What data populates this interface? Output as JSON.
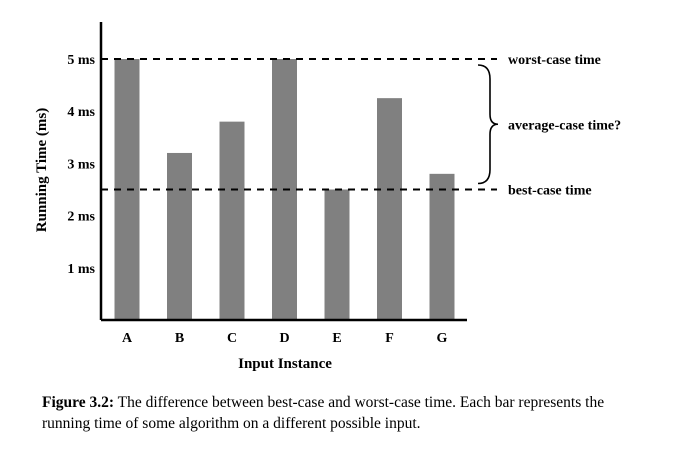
{
  "chart_data": {
    "type": "bar",
    "categories": [
      "A",
      "B",
      "C",
      "D",
      "E",
      "F",
      "G"
    ],
    "values": [
      5.0,
      3.2,
      3.8,
      5.0,
      2.5,
      4.25,
      2.8
    ],
    "ylabel": "Running Time (ms)",
    "xlabel": "Input Instance",
    "yticks": [
      1,
      2,
      3,
      4,
      5
    ],
    "ytick_labels": [
      "1 ms",
      "2 ms",
      "3 ms",
      "4 ms",
      "5 ms"
    ],
    "ylim": [
      0,
      5.7
    ],
    "bar_color": "#808080",
    "reference_lines": [
      {
        "name": "worst-case",
        "value": 5.0,
        "label": "worst-case time"
      },
      {
        "name": "best-case",
        "value": 2.5,
        "label": "best-case time"
      }
    ],
    "brace_label": "average-case time?"
  },
  "caption": {
    "label": "Figure 3.2:",
    "text": " The difference between best-case and worst-case time. Each bar represents the running time of some algorithm on a different possible input."
  }
}
